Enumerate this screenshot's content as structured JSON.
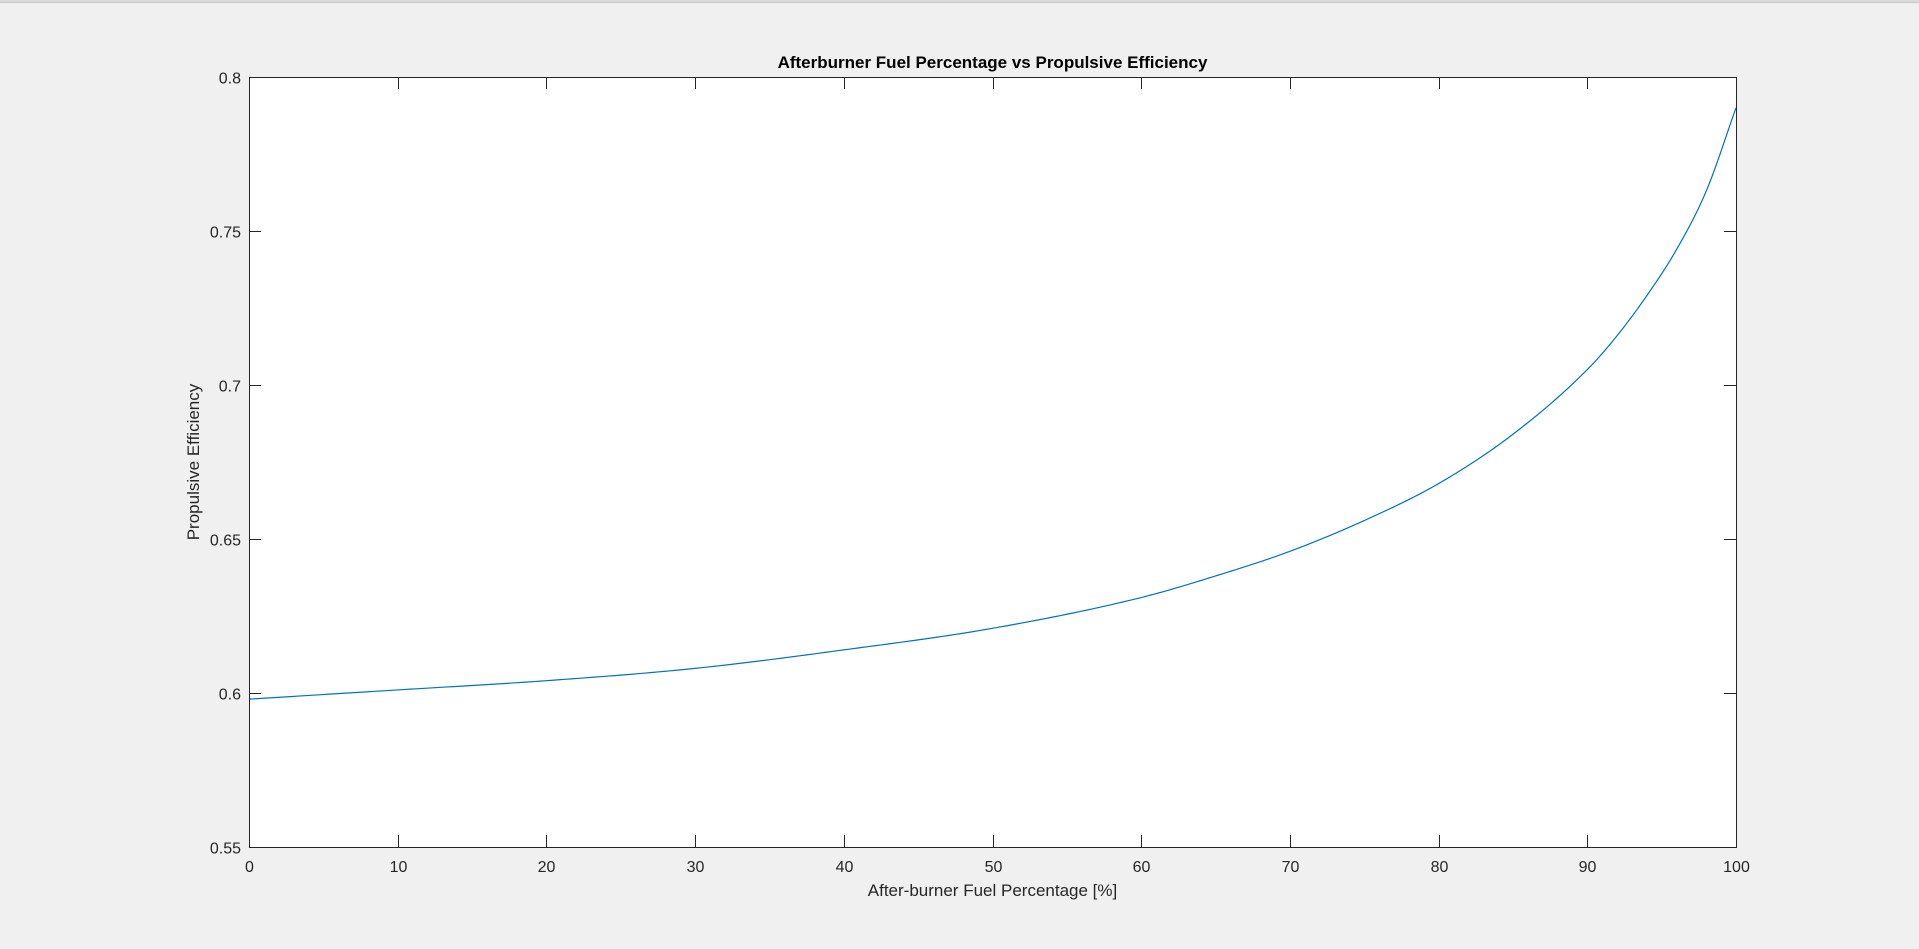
{
  "chart_data": {
    "type": "line",
    "title": "Afterburner Fuel Percentage vs Propulsive Efficiency",
    "xlabel": "After-burner Fuel Percentage [%]",
    "ylabel": "Propulsive Efficiency",
    "xlim": [
      0,
      100
    ],
    "ylim": [
      0.55,
      0.8
    ],
    "xticks": [
      "0",
      "10",
      "20",
      "30",
      "40",
      "50",
      "60",
      "70",
      "80",
      "90",
      "100"
    ],
    "yticks": [
      "0.55",
      "0.6",
      "0.65",
      "0.7",
      "0.75",
      "0.8"
    ],
    "grid": false,
    "series": [
      {
        "color": "#0072bd",
        "x": [
          0,
          10,
          20,
          30,
          40,
          50,
          60,
          65,
          70,
          75,
          80,
          85,
          90,
          92,
          94,
          96,
          98,
          100
        ],
        "y": [
          0.598,
          0.601,
          0.604,
          0.608,
          0.614,
          0.621,
          0.631,
          0.638,
          0.646,
          0.656,
          0.668,
          0.684,
          0.705,
          0.716,
          0.729,
          0.744,
          0.763,
          0.79
        ]
      }
    ]
  }
}
